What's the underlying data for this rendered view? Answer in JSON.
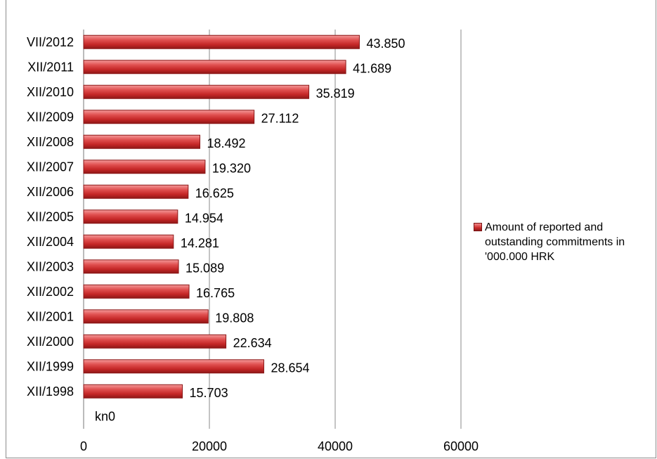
{
  "chart_data": {
    "type": "bar",
    "orientation": "horizontal",
    "categories": [
      "VII/2012",
      "XII/2011",
      "XII/2010",
      "XII/2009",
      "XII/2008",
      "XII/2007",
      "XII/2006",
      "XII/2005",
      "XII/2004",
      "XII/2003",
      "XII/2002",
      "XII/2001",
      "XII/2000",
      "XII/1999",
      "XII/1998"
    ],
    "series": [
      {
        "name": "Amount of reported and outstanding commitments in '000.000 HRK",
        "values": [
          43850,
          41689,
          35819,
          27112,
          18492,
          19320,
          16625,
          14954,
          14281,
          15089,
          16765,
          19808,
          22634,
          28654,
          15703
        ],
        "data_labels": [
          "43.850",
          "41.689",
          "35.819",
          "27.112",
          "18.492",
          "19.320",
          "16.625",
          "14.954",
          "14.281",
          "15.089",
          "16.765",
          "19.808",
          "22.634",
          "28.654",
          "15.703"
        ]
      }
    ],
    "empty_category_label": "kn0",
    "xlim": [
      0,
      60000
    ],
    "x_ticks": [
      "0",
      "20000",
      "40000",
      "60000"
    ],
    "grid": "vertical",
    "legend_position": "right",
    "bar_color": "#cc2b2b"
  }
}
